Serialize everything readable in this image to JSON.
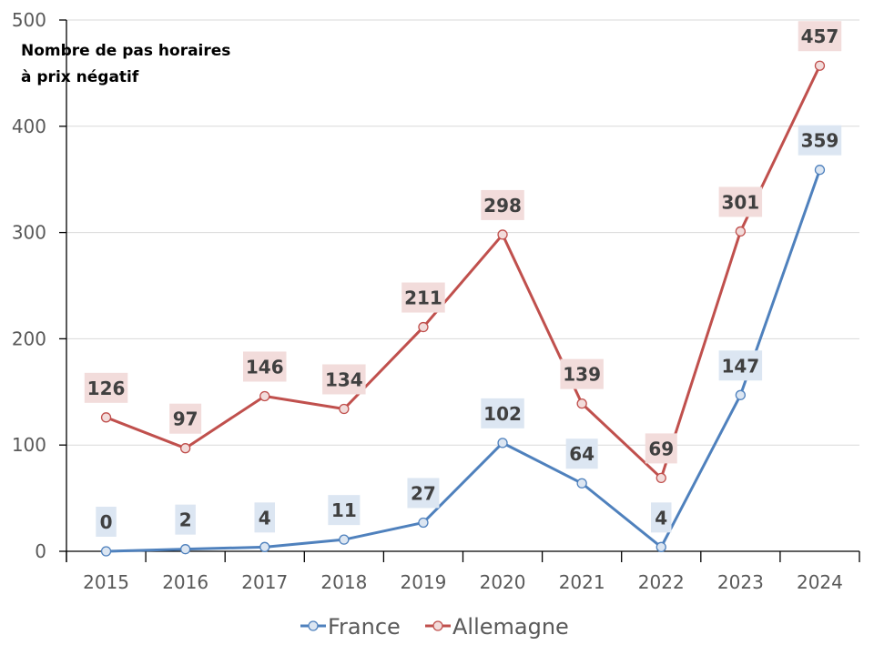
{
  "chart_data": {
    "type": "line",
    "title": "Nombre de pas horaires à prix négatif",
    "title_lines": [
      "Nombre de pas horaires",
      "à prix négatif"
    ],
    "xlabel": "",
    "ylabel": "",
    "categories": [
      "2015",
      "2016",
      "2017",
      "2018",
      "2019",
      "2020",
      "2021",
      "2022",
      "2023",
      "2024"
    ],
    "ylim": [
      0,
      500
    ],
    "yticks": [
      0,
      100,
      200,
      300,
      400,
      500
    ],
    "grid": true,
    "legend_position": "bottom",
    "series": [
      {
        "name": "France",
        "color": "#4F81BD",
        "marker_fill": "#DCE6F2",
        "label_bg": "#DCE6F2",
        "values": [
          0,
          2,
          4,
          11,
          27,
          102,
          64,
          4,
          147,
          359
        ]
      },
      {
        "name": "Allemagne",
        "color": "#C0504D",
        "marker_fill": "#F2DCDB",
        "label_bg": "#F2DCDB",
        "values": [
          126,
          97,
          146,
          134,
          211,
          298,
          139,
          69,
          301,
          457
        ]
      }
    ]
  }
}
